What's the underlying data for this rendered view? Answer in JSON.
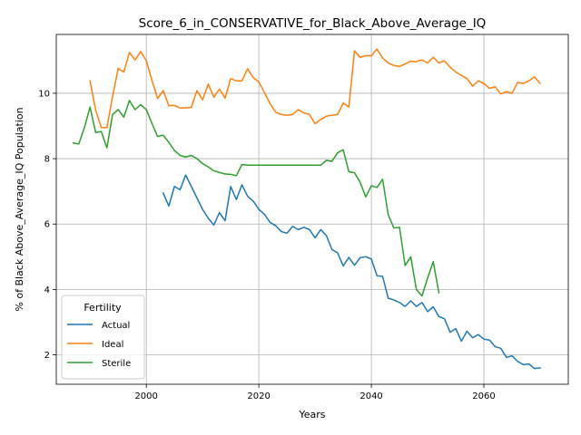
{
  "chart_data": {
    "type": "line",
    "title": "Score_6_in_CONSERVATIVE_for_Black_Above_Average_IQ",
    "xlabel": "Years",
    "ylabel": "% of Black Above_Average_IQ Population",
    "xlim": [
      1984,
      2075
    ],
    "ylim": [
      1.1,
      11.8
    ],
    "xticks": [
      2000,
      2020,
      2040,
      2060
    ],
    "yticks": [
      2,
      4,
      6,
      8,
      10
    ],
    "xtick_labels": [
      "2000",
      "2020",
      "2040",
      "2060"
    ],
    "ytick_labels": [
      "2",
      "4",
      "6",
      "8",
      "10"
    ],
    "grid": true,
    "legend": {
      "title": "Fertility",
      "placement": "bottom-left"
    },
    "series": [
      {
        "name": "Actual",
        "color": "#1f77b4",
        "x": [
          2003,
          2004,
          2005,
          2006,
          2007,
          2008,
          2009,
          2010,
          2011,
          2012,
          2013,
          2014,
          2015,
          2016,
          2017,
          2018,
          2019,
          2020,
          2021,
          2022,
          2023,
          2024,
          2025,
          2026,
          2027,
          2028,
          2029,
          2030,
          2031,
          2032,
          2033,
          2034,
          2035,
          2036,
          2037,
          2038,
          2039,
          2040,
          2041,
          2042,
          2043,
          2044,
          2045,
          2046,
          2047,
          2048,
          2049,
          2050,
          2051,
          2052,
          2053,
          2054,
          2055,
          2056,
          2057,
          2058,
          2059,
          2060,
          2061,
          2062,
          2063,
          2064,
          2065,
          2066,
          2067,
          2068,
          2069,
          2070
        ],
        "y": [
          6.95,
          6.55,
          7.15,
          7.05,
          7.5,
          7.15,
          6.8,
          6.45,
          6.18,
          5.97,
          6.35,
          6.1,
          7.15,
          6.75,
          7.2,
          6.85,
          6.7,
          6.45,
          6.3,
          6.05,
          5.95,
          5.77,
          5.72,
          5.93,
          5.83,
          5.9,
          5.83,
          5.58,
          5.83,
          5.65,
          5.22,
          5.12,
          4.72,
          4.98,
          4.74,
          4.97,
          5.0,
          4.93,
          4.42,
          4.4,
          3.73,
          3.68,
          3.6,
          3.48,
          3.65,
          3.48,
          3.6,
          3.32,
          3.47,
          3.17,
          3.1,
          2.69,
          2.8,
          2.42,
          2.72,
          2.52,
          2.62,
          2.48,
          2.45,
          2.25,
          2.2,
          1.92,
          1.97,
          1.8,
          1.7,
          1.72,
          1.58,
          1.6
        ]
      },
      {
        "name": "Ideal",
        "color": "#ff7f0e",
        "x": [
          1990,
          1991,
          1992,
          1993,
          1994,
          1995,
          1996,
          1997,
          1998,
          1999,
          2000,
          2001,
          2002,
          2003,
          2004,
          2005,
          2006,
          2007,
          2008,
          2009,
          2010,
          2011,
          2012,
          2013,
          2014,
          2015,
          2016,
          2017,
          2018,
          2019,
          2020,
          2021,
          2022,
          2023,
          2024,
          2025,
          2026,
          2027,
          2028,
          2029,
          2030,
          2031,
          2032,
          2033,
          2034,
          2035,
          2036,
          2037,
          2038,
          2039,
          2040,
          2041,
          2042,
          2043,
          2044,
          2045,
          2046,
          2047,
          2048,
          2049,
          2050,
          2051,
          2052,
          2053,
          2054,
          2055,
          2056,
          2057,
          2058,
          2059,
          2060,
          2061,
          2062,
          2063,
          2064,
          2065,
          2066,
          2067,
          2068,
          2069,
          2070
        ],
        "y": [
          10.38,
          9.48,
          8.95,
          8.95,
          9.9,
          10.76,
          10.65,
          11.25,
          11.02,
          11.28,
          11.0,
          10.4,
          9.84,
          10.08,
          9.62,
          9.63,
          9.55,
          9.55,
          9.57,
          10.08,
          9.8,
          10.28,
          9.88,
          10.13,
          9.85,
          10.45,
          10.38,
          10.38,
          10.75,
          10.48,
          10.35,
          10.02,
          9.68,
          9.42,
          9.35,
          9.33,
          9.35,
          9.5,
          9.4,
          9.35,
          9.07,
          9.2,
          9.3,
          9.33,
          9.35,
          9.7,
          9.58,
          11.3,
          11.1,
          11.15,
          11.15,
          11.35,
          11.08,
          10.93,
          10.85,
          10.82,
          10.9,
          10.98,
          10.97,
          11.02,
          10.93,
          11.1,
          10.93,
          10.99,
          10.8,
          10.65,
          10.55,
          10.45,
          10.22,
          10.38,
          10.3,
          10.15,
          10.2,
          9.98,
          10.05,
          10.0,
          10.33,
          10.3,
          10.38,
          10.5,
          10.3
        ]
      },
      {
        "name": "Sterile",
        "color": "#2ca02c",
        "x": [
          1987,
          1988,
          1989,
          1990,
          1991,
          1992,
          1993,
          1994,
          1995,
          1996,
          1997,
          1998,
          1999,
          2000,
          2001,
          2002,
          2003,
          2004,
          2005,
          2006,
          2007,
          2008,
          2009,
          2010,
          2011,
          2012,
          2013,
          2014,
          2015,
          2016,
          2017,
          2018,
          2019,
          2020,
          2021,
          2022,
          2023,
          2024,
          2025,
          2026,
          2027,
          2028,
          2029,
          2030,
          2031,
          2032,
          2033,
          2034,
          2035,
          2036,
          2037,
          2038,
          2039,
          2040,
          2041,
          2042,
          2043,
          2044,
          2045,
          2046,
          2047,
          2048,
          2049,
          2050,
          2051,
          2052
        ],
        "y": [
          8.48,
          8.45,
          8.95,
          9.58,
          8.8,
          8.83,
          8.33,
          9.35,
          9.5,
          9.27,
          9.78,
          9.5,
          9.65,
          9.5,
          9.08,
          8.68,
          8.72,
          8.5,
          8.25,
          8.1,
          8.05,
          8.1,
          8.0,
          7.85,
          7.75,
          7.63,
          7.58,
          7.53,
          7.52,
          7.48,
          7.82,
          7.8,
          7.8,
          7.8,
          7.8,
          7.8,
          7.8,
          7.8,
          7.8,
          7.8,
          7.8,
          7.8,
          7.8,
          7.8,
          7.8,
          7.95,
          7.92,
          8.18,
          8.27,
          7.6,
          7.57,
          7.28,
          6.83,
          7.17,
          7.12,
          7.37,
          6.28,
          5.88,
          5.9,
          4.73,
          5.0,
          4.0,
          3.8,
          4.35,
          4.85,
          3.9
        ]
      }
    ]
  }
}
